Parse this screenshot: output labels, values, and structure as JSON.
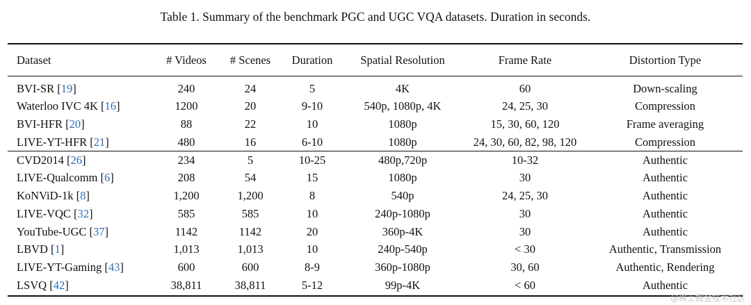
{
  "caption": "Table 1. Summary of the benchmark PGC and UGC VQA datasets. Duration in seconds.",
  "headers": [
    "Dataset",
    "# Videos",
    "# Scenes",
    "Duration",
    "Spatial Resolution",
    "Frame Rate",
    "Distortion Type"
  ],
  "groups": [
    [
      {
        "name": "BVI-SR",
        "cite": "19",
        "cells": [
          "240",
          "24",
          "5",
          "4K",
          "60",
          "Down-scaling"
        ]
      },
      {
        "name": "Waterloo IVC 4K",
        "cite": "16",
        "cells": [
          "1200",
          "20",
          "9-10",
          "540p, 1080p, 4K",
          "24, 25, 30",
          "Compression"
        ]
      },
      {
        "name": "BVI-HFR",
        "cite": "20",
        "cells": [
          "88",
          "22",
          "10",
          "1080p",
          "15, 30, 60, 120",
          "Frame averaging"
        ]
      },
      {
        "name": "LIVE-YT-HFR",
        "cite": "21",
        "cells": [
          "480",
          "16",
          "6-10",
          "1080p",
          "24, 30, 60, 82, 98, 120",
          "Compression"
        ]
      }
    ],
    [
      {
        "name": "CVD2014",
        "cite": "26",
        "cells": [
          "234",
          "5",
          "10-25",
          "480p,720p",
          "10-32",
          "Authentic"
        ]
      },
      {
        "name": "LIVE-Qualcomm",
        "cite": "6",
        "cells": [
          "208",
          "54",
          "15",
          "1080p",
          "30",
          "Authentic"
        ]
      },
      {
        "name": "KoNViD-1k",
        "cite": "8",
        "cells": [
          "1,200",
          "1,200",
          "8",
          "540p",
          "24, 25, 30",
          "Authentic"
        ]
      },
      {
        "name": "LIVE-VQC",
        "cite": "32",
        "cells": [
          "585",
          "585",
          "10",
          "240p-1080p",
          "30",
          "Authentic"
        ]
      },
      {
        "name": "YouTube-UGC",
        "cite": "37",
        "cells": [
          "1142",
          "1142",
          "20",
          "360p-4K",
          "30",
          "Authentic"
        ]
      },
      {
        "name": "LBVD",
        "cite": "1",
        "cells": [
          "1,013",
          "1,013",
          "10",
          "240p-540p",
          "< 30",
          "Authentic, Transmission"
        ]
      },
      {
        "name": "LIVE-YT-Gaming",
        "cite": "43",
        "cells": [
          "600",
          "600",
          "8-9",
          "360p-1080p",
          "30, 60",
          "Authentic, Rendering"
        ]
      },
      {
        "name": "LSVQ",
        "cite": "42",
        "cells": [
          "38,811",
          "38,811",
          "5-12",
          "99p-4K",
          "< 60",
          "Authentic"
        ]
      }
    ]
  ],
  "watermark": "@稀土掘金技术社区"
}
